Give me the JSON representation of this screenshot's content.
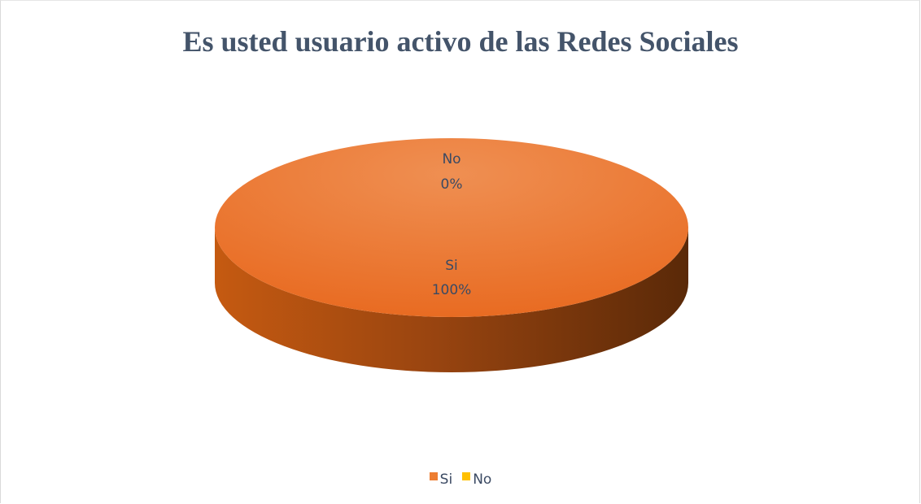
{
  "chart_data": {
    "type": "pie",
    "title": "Es usted usuario activo de las Redes Sociales",
    "categories": [
      "Si",
      "No"
    ],
    "values": [
      100,
      0
    ],
    "data_labels": [
      {
        "category": "Si",
        "percent": "100%"
      },
      {
        "category": "No",
        "percent": "0%"
      }
    ],
    "colors": [
      "#ed7d31",
      "#ffc000"
    ],
    "legend": {
      "position": "bottom",
      "entries": [
        "Si",
        "No"
      ]
    },
    "style": "3d"
  }
}
